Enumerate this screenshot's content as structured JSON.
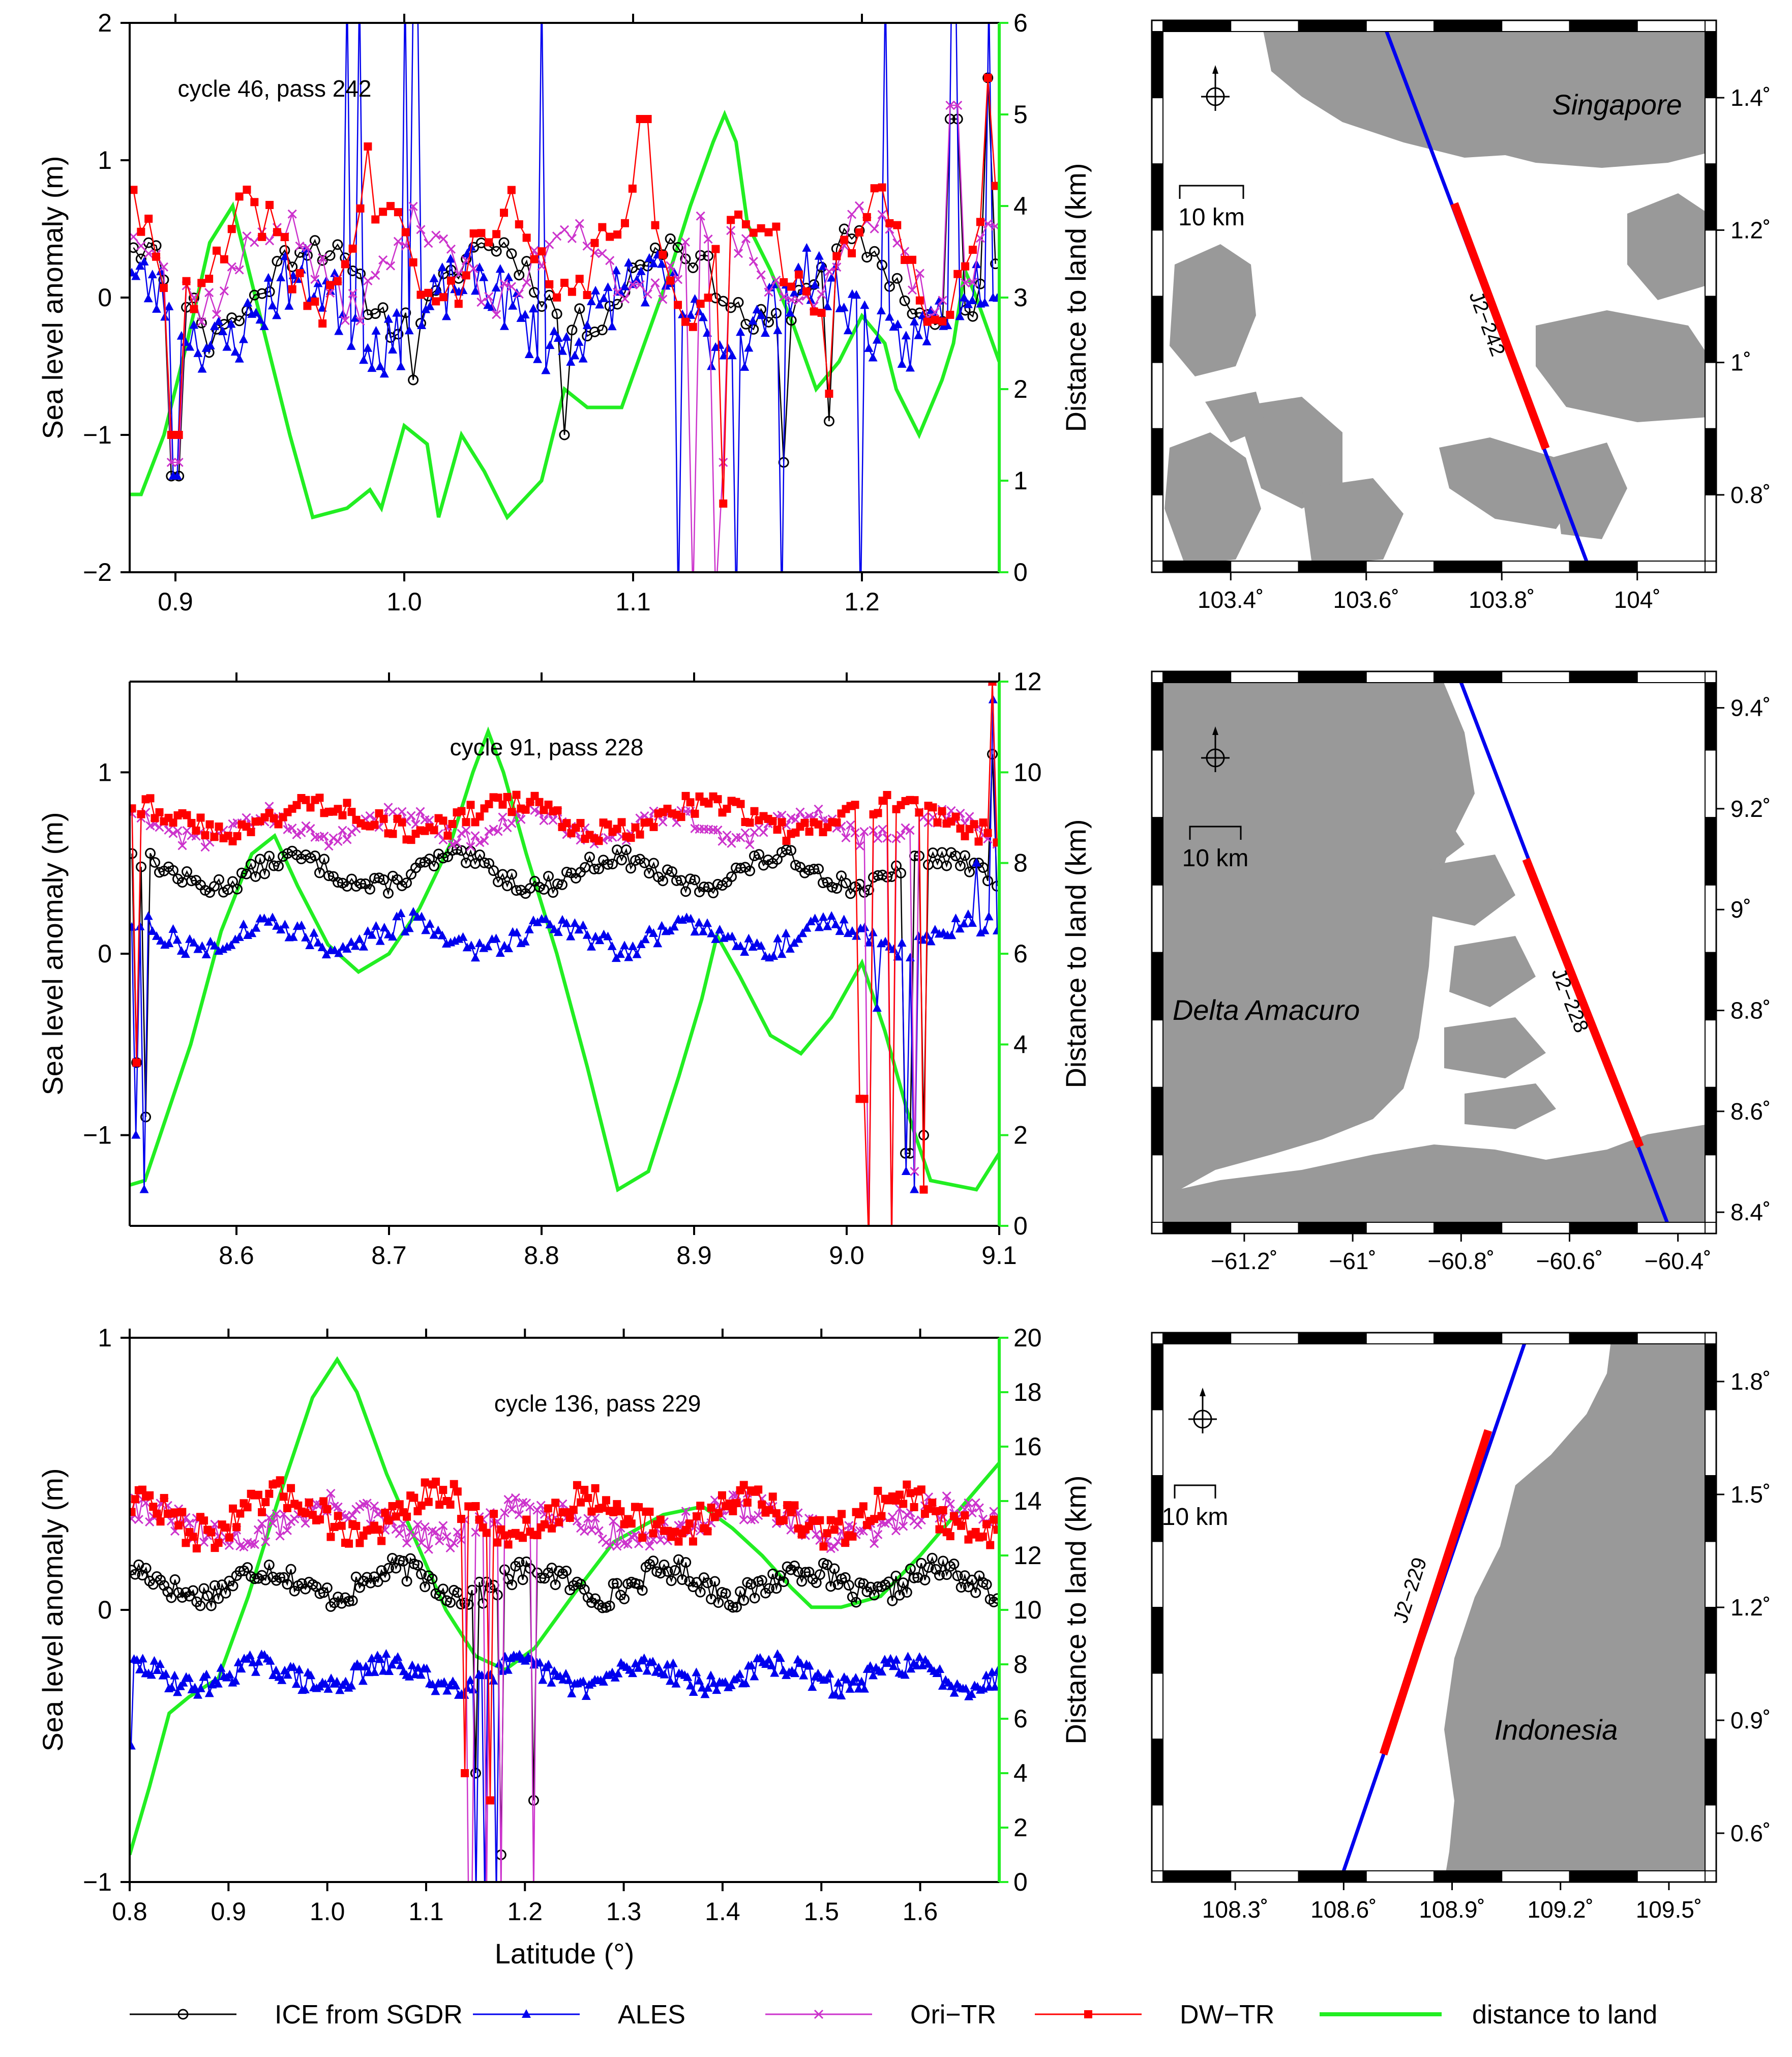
{
  "colors": {
    "ice": "#000000",
    "ales": "#0000ee",
    "ori": "#cc33cc",
    "dw": "#ff0000",
    "land_dist": "#22ee22",
    "land_fill": "#999999",
    "track_red": "#ff0000",
    "track_blue": "#0000ee"
  },
  "legend": {
    "items": [
      {
        "label": "ICE from SGDR",
        "series": "ice",
        "marker": "circle"
      },
      {
        "label": "ALES",
        "series": "ales",
        "marker": "triangle"
      },
      {
        "label": "Ori−TR",
        "series": "ori",
        "marker": "x"
      },
      {
        "label": "DW−TR",
        "series": "dw",
        "marker": "square"
      },
      {
        "label": "distance to land",
        "series": "land_dist",
        "marker": "none"
      }
    ]
  },
  "chart_data": [
    {
      "type": "line",
      "title": "cycle 46, pass 242",
      "xlabel": "",
      "ylabel": "Sea level anomaly (m)",
      "y2label": "Distance to land (km)",
      "xlim": [
        0.88,
        1.26
      ],
      "ylim": [
        -2,
        2
      ],
      "y2lim": [
        0,
        6
      ],
      "xticks": [
        "0.9",
        "1.0",
        "1.1",
        "1.2"
      ],
      "xtick_values": [
        0.9,
        1.0,
        1.1,
        1.2
      ],
      "yticks": [
        "−2",
        "−1",
        "0",
        "1",
        "2"
      ],
      "ytick_values": [
        -2,
        -1,
        0,
        1,
        2
      ],
      "y2ticks": [
        "0",
        "1",
        "2",
        "3",
        "4",
        "5",
        "6"
      ],
      "y2tick_values": [
        0,
        1,
        2,
        3,
        4,
        5,
        6
      ],
      "series": [
        {
          "name": "ICE from SGDR",
          "key": "ice",
          "n": 115,
          "seed": 11,
          "mean": 0.1,
          "noise": 0.12,
          "wave": 0.3,
          "spikes": [
            [
              0.9,
              -1.3
            ],
            [
              0.915,
              -0.4
            ],
            [
              1.005,
              -0.6
            ],
            [
              1.07,
              -1.0
            ],
            [
              1.165,
              -1.2
            ],
            [
              1.185,
              -0.9
            ],
            [
              1.24,
              1.3
            ],
            [
              1.255,
              1.6
            ]
          ]
        },
        {
          "name": "ALES",
          "key": "ales",
          "n": 210,
          "seed": 23,
          "mean": -0.1,
          "noise": 0.22,
          "wave": 0.25,
          "spikes": [
            [
              0.9,
              -1.3
            ],
            [
              0.975,
              2.3
            ],
            [
              0.98,
              2.3
            ],
            [
              1.0,
              2.3
            ],
            [
              1.005,
              2.3
            ],
            [
              1.06,
              2.3
            ],
            [
              1.12,
              -2.3
            ],
            [
              1.145,
              -2.3
            ],
            [
              1.165,
              -2.3
            ],
            [
              1.2,
              -2.3
            ],
            [
              1.21,
              2.3
            ],
            [
              1.24,
              2.3
            ],
            [
              1.255,
              2.2
            ]
          ]
        },
        {
          "name": "Ori-TR",
          "key": "ori",
          "n": 115,
          "seed": 37,
          "mean": 0.25,
          "noise": 0.15,
          "wave": 0.3,
          "spikes": [
            [
              0.9,
              -1.2
            ],
            [
              1.125,
              -2.2
            ],
            [
              1.135,
              -2.2
            ],
            [
              1.14,
              -1.2
            ],
            [
              1.24,
              1.4
            ]
          ]
        },
        {
          "name": "DW-TR",
          "key": "dw",
          "n": 115,
          "seed": 41,
          "mean": 0.3,
          "noise": 0.18,
          "wave": 0.35,
          "spikes": [
            [
              0.9,
              -1.0
            ],
            [
              0.985,
              1.1
            ],
            [
              1.105,
              1.3
            ],
            [
              1.14,
              -1.5
            ],
            [
              1.185,
              -0.7
            ],
            [
              1.255,
              1.6
            ]
          ]
        }
      ],
      "land": [
        [
          0.88,
          0.85
        ],
        [
          0.885,
          0.85
        ],
        [
          0.895,
          1.5
        ],
        [
          0.905,
          2.5
        ],
        [
          0.915,
          3.6
        ],
        [
          0.925,
          4.0
        ],
        [
          0.93,
          3.5
        ],
        [
          0.94,
          2.5
        ],
        [
          0.95,
          1.5
        ],
        [
          0.96,
          0.6
        ],
        [
          0.975,
          0.7
        ],
        [
          0.985,
          0.9
        ],
        [
          0.99,
          0.7
        ],
        [
          1.0,
          1.6
        ],
        [
          1.01,
          1.4
        ],
        [
          1.015,
          0.6
        ],
        [
          1.025,
          1.5
        ],
        [
          1.035,
          1.1
        ],
        [
          1.045,
          0.6
        ],
        [
          1.06,
          1.0
        ],
        [
          1.07,
          2.0
        ],
        [
          1.08,
          1.8
        ],
        [
          1.095,
          1.8
        ],
        [
          1.105,
          2.5
        ],
        [
          1.115,
          3.2
        ],
        [
          1.125,
          4.0
        ],
        [
          1.135,
          4.7
        ],
        [
          1.14,
          5.0
        ],
        [
          1.145,
          4.7
        ],
        [
          1.15,
          3.8
        ],
        [
          1.16,
          3.3
        ],
        [
          1.17,
          2.7
        ],
        [
          1.18,
          2.0
        ],
        [
          1.19,
          2.3
        ],
        [
          1.2,
          2.8
        ],
        [
          1.21,
          2.5
        ],
        [
          1.215,
          2.0
        ],
        [
          1.225,
          1.5
        ],
        [
          1.235,
          2.1
        ],
        [
          1.24,
          2.5
        ],
        [
          1.245,
          3.3
        ],
        [
          1.25,
          3.0
        ],
        [
          1.26,
          2.3
        ]
      ]
    },
    {
      "type": "line",
      "title": "cycle 91, pass 228",
      "xlabel": "",
      "ylabel": "Sea level anomaly (m)",
      "y2label": "Distance to land (km)",
      "xlim": [
        8.53,
        9.1
      ],
      "ylim": [
        -1.5,
        1.5
      ],
      "y2lim": [
        0,
        12
      ],
      "xticks": [
        "8.6",
        "8.7",
        "8.8",
        "8.9",
        "9.0",
        "9.1"
      ],
      "xtick_values": [
        8.6,
        8.7,
        8.8,
        8.9,
        9.0,
        9.1
      ],
      "yticks": [
        "−1",
        "0",
        "1"
      ],
      "ytick_values": [
        -1,
        0,
        1
      ],
      "y2ticks": [
        "0",
        "2",
        "4",
        "6",
        "8",
        "10",
        "12"
      ],
      "y2tick_values": [
        0,
        2,
        4,
        6,
        8,
        10,
        12
      ],
      "series": [
        {
          "name": "ICE from SGDR",
          "key": "ice",
          "n": 190,
          "seed": 13,
          "mean": 0.45,
          "noise": 0.05,
          "wave": 0.08,
          "spikes": [
            [
              8.535,
              -0.6
            ],
            [
              8.54,
              -0.9
            ],
            [
              9.04,
              -1.1
            ],
            [
              9.05,
              -1.0
            ],
            [
              9.085,
              0.5
            ],
            [
              9.095,
              1.1
            ]
          ]
        },
        {
          "name": "ALES",
          "key": "ales",
          "n": 210,
          "seed": 27,
          "mean": 0.1,
          "noise": 0.06,
          "wave": 0.07,
          "spikes": [
            [
              8.535,
              -1.0
            ],
            [
              8.54,
              -1.3
            ],
            [
              9.02,
              -0.3
            ],
            [
              9.04,
              -1.2
            ],
            [
              9.045,
              -1.3
            ],
            [
              9.085,
              0.5
            ],
            [
              9.095,
              1.4
            ]
          ]
        },
        {
          "name": "Ori-TR",
          "key": "ori",
          "n": 190,
          "seed": 39,
          "mean": 0.7,
          "noise": 0.05,
          "wave": 0.07,
          "spikes": [
            [
              8.535,
              -0.6
            ],
            [
              9.015,
              -1.6
            ],
            [
              9.03,
              -1.6
            ],
            [
              9.045,
              -1.2
            ],
            [
              9.085,
              0.7
            ],
            [
              9.095,
              1.5
            ]
          ]
        },
        {
          "name": "DW-TR",
          "key": "dw",
          "n": 190,
          "seed": 43,
          "mean": 0.75,
          "noise": 0.06,
          "wave": 0.08,
          "spikes": [
            [
              8.535,
              -0.6
            ],
            [
              9.01,
              -0.8
            ],
            [
              9.015,
              -1.6
            ],
            [
              9.03,
              -1.6
            ],
            [
              9.05,
              -1.3
            ],
            [
              9.095,
              1.5
            ]
          ]
        }
      ],
      "land": [
        [
          8.53,
          0.9
        ],
        [
          8.54,
          1.0
        ],
        [
          8.55,
          2.0
        ],
        [
          8.57,
          4.0
        ],
        [
          8.59,
          6.5
        ],
        [
          8.61,
          8.2
        ],
        [
          8.625,
          8.6
        ],
        [
          8.64,
          7.5
        ],
        [
          8.66,
          6.2
        ],
        [
          8.68,
          5.6
        ],
        [
          8.7,
          6.0
        ],
        [
          8.72,
          7.0
        ],
        [
          8.74,
          8.4
        ],
        [
          8.755,
          10.0
        ],
        [
          8.765,
          10.9
        ],
        [
          8.775,
          10.0
        ],
        [
          8.79,
          8.2
        ],
        [
          8.81,
          6.0
        ],
        [
          8.83,
          3.5
        ],
        [
          8.85,
          0.8
        ],
        [
          8.87,
          1.2
        ],
        [
          8.89,
          3.3
        ],
        [
          8.905,
          5.0
        ],
        [
          8.915,
          6.4
        ],
        [
          8.93,
          5.5
        ],
        [
          8.95,
          4.2
        ],
        [
          8.97,
          3.8
        ],
        [
          8.99,
          4.6
        ],
        [
          9.01,
          5.8
        ],
        [
          9.025,
          4.3
        ],
        [
          9.04,
          2.5
        ],
        [
          9.055,
          1.0
        ],
        [
          9.085,
          0.8
        ],
        [
          9.1,
          1.6
        ]
      ]
    },
    {
      "type": "line",
      "title": "cycle 136, pass 229",
      "xlabel": "Latitude (°)",
      "ylabel": "Sea level anomaly (m)",
      "y2label": "Distance to land (km)",
      "xlim": [
        0.8,
        1.68
      ],
      "ylim": [
        -1,
        1
      ],
      "y2lim": [
        0,
        20
      ],
      "xticks": [
        "0.8",
        "0.9",
        "1.0",
        "1.1",
        "1.2",
        "1.3",
        "1.4",
        "1.5",
        "1.6"
      ],
      "xtick_values": [
        0.8,
        0.9,
        1.0,
        1.1,
        1.2,
        1.3,
        1.4,
        1.5,
        1.6
      ],
      "yticks": [
        "−1",
        "0",
        "1"
      ],
      "ytick_values": [
        -1,
        0,
        1
      ],
      "y2ticks": [
        "0",
        "2",
        "4",
        "6",
        "8",
        "10",
        "12",
        "14",
        "16",
        "18",
        "20"
      ],
      "y2tick_values": [
        0,
        2,
        4,
        6,
        8,
        10,
        12,
        14,
        16,
        18,
        20
      ],
      "series": [
        {
          "name": "ICE from SGDR",
          "key": "ice",
          "n": 240,
          "seed": 17,
          "mean": 0.1,
          "noise": 0.045,
          "wave": 0.05,
          "spikes": [
            [
              1.15,
              -0.6
            ],
            [
              1.175,
              -0.9
            ],
            [
              1.21,
              -0.7
            ]
          ]
        },
        {
          "name": "ALES",
          "key": "ales",
          "n": 300,
          "seed": 29,
          "mean": -0.24,
          "noise": 0.04,
          "wave": 0.04,
          "spikes": [
            [
              0.8,
              -0.5
            ],
            [
              1.15,
              -1.05
            ],
            [
              1.16,
              -1.05
            ],
            [
              1.17,
              -1.05
            ]
          ]
        },
        {
          "name": "Ori-TR",
          "key": "ori",
          "n": 240,
          "seed": 31,
          "mean": 0.32,
          "noise": 0.05,
          "wave": 0.06,
          "spikes": [
            [
              1.145,
              -1.05
            ],
            [
              1.16,
              -1.05
            ],
            [
              1.175,
              -1.05
            ],
            [
              1.21,
              -1.05
            ]
          ]
        },
        {
          "name": "DW-TR",
          "key": "dw",
          "n": 240,
          "seed": 47,
          "mean": 0.35,
          "noise": 0.06,
          "wave": 0.07,
          "spikes": [
            [
              1.14,
              -0.6
            ],
            [
              1.165,
              -0.7
            ]
          ]
        }
      ],
      "land": [
        [
          0.8,
          1.0
        ],
        [
          0.82,
          3.5
        ],
        [
          0.84,
          6.2
        ],
        [
          0.86,
          6.8
        ],
        [
          0.89,
          7.5
        ],
        [
          0.92,
          10.5
        ],
        [
          0.95,
          14.0
        ],
        [
          0.985,
          17.8
        ],
        [
          1.01,
          19.2
        ],
        [
          1.03,
          18.0
        ],
        [
          1.06,
          15.0
        ],
        [
          1.09,
          12.5
        ],
        [
          1.12,
          10.0
        ],
        [
          1.15,
          8.3
        ],
        [
          1.18,
          7.8
        ],
        [
          1.21,
          8.6
        ],
        [
          1.25,
          10.6
        ],
        [
          1.29,
          12.5
        ],
        [
          1.34,
          13.5
        ],
        [
          1.38,
          13.8
        ],
        [
          1.41,
          13.0
        ],
        [
          1.44,
          12.0
        ],
        [
          1.47,
          10.8
        ],
        [
          1.49,
          10.1
        ],
        [
          1.52,
          10.1
        ],
        [
          1.56,
          10.5
        ],
        [
          1.6,
          12.0
        ],
        [
          1.64,
          13.7
        ],
        [
          1.68,
          15.4
        ]
      ]
    }
  ],
  "maps": [
    {
      "xlim": [
        103.3,
        104.1
      ],
      "ylim": [
        0.7,
        1.5
      ],
      "xticks": [
        "103.4˚",
        "103.6˚",
        "103.8˚",
        "104˚"
      ],
      "xtick_values": [
        103.4,
        103.6,
        103.8,
        104.0
      ],
      "yticks": [
        "0.8˚",
        "1˚",
        "1.2˚",
        "1.4˚"
      ],
      "ytick_values": [
        0.8,
        1.0,
        1.2,
        1.4
      ],
      "place": "Singapore",
      "track_label": "J2−242",
      "scale_label": "10 km",
      "track_start": [
        103.63,
        1.5
      ],
      "track_end": [
        103.925,
        0.7
      ],
      "red_start": [
        103.73,
        1.24
      ],
      "red_end": [
        103.865,
        0.87
      ]
    },
    {
      "xlim": [
        -61.35,
        -60.35
      ],
      "ylim": [
        8.38,
        9.45
      ],
      "xticks": [
        "−61.2˚",
        "−61˚",
        "−60.8˚",
        "−60.6˚",
        "−60.4˚"
      ],
      "xtick_values": [
        -61.2,
        -61.0,
        -60.8,
        -60.6,
        -60.4
      ],
      "yticks": [
        "8.4˚",
        "8.6˚",
        "8.8˚",
        "9˚",
        "9.2˚",
        "9.4˚"
      ],
      "ytick_values": [
        8.4,
        8.6,
        8.8,
        9.0,
        9.2,
        9.4
      ],
      "place": "Delta Amacuro",
      "track_label": "J2−228",
      "scale_label": "10 km",
      "track_start": [
        -60.8,
        9.45
      ],
      "track_end": [
        -60.42,
        8.38
      ],
      "red_start": [
        -60.68,
        9.1
      ],
      "red_end": [
        -60.47,
        8.53
      ]
    },
    {
      "xlim": [
        108.1,
        109.6
      ],
      "ylim": [
        0.5,
        1.9
      ],
      "xticks": [
        "108.3˚",
        "108.6˚",
        "108.9˚",
        "109.2˚",
        "109.5˚"
      ],
      "xtick_values": [
        108.3,
        108.6,
        108.9,
        109.2,
        109.5
      ],
      "yticks": [
        "0.6˚",
        "0.9˚",
        "1.2˚",
        "1.5˚",
        "1.8˚"
      ],
      "ytick_values": [
        0.6,
        0.9,
        1.2,
        1.5,
        1.8
      ],
      "place": "Indonesia",
      "track_label": "J2−229",
      "scale_label": "10 km",
      "track_start": [
        109.1,
        1.9
      ],
      "track_end": [
        108.6,
        0.5
      ],
      "red_start": [
        109.0,
        1.67
      ],
      "red_end": [
        108.71,
        0.81
      ]
    }
  ]
}
